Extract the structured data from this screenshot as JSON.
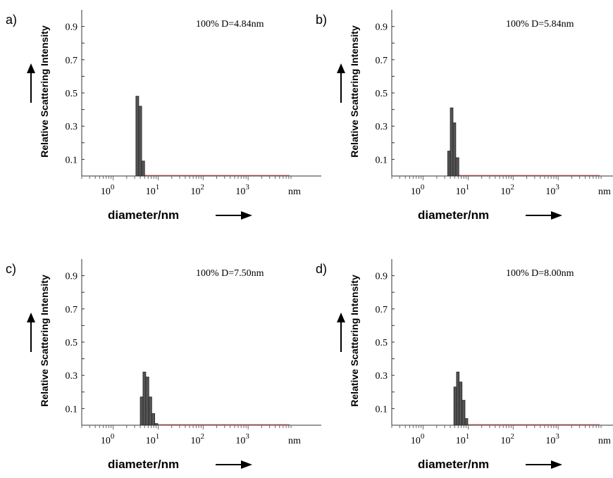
{
  "chart_data": [
    {
      "type": "bar",
      "panel_label": "a)",
      "annotation": "100%  D=4.84nm",
      "ylabel": "Relative Scattering Intensity",
      "xlabel": "diameter/nm",
      "x_unit": "nm",
      "x_scale": "log",
      "xlim": [
        0.2,
        10000
      ],
      "ylim": [
        0,
        1.0
      ],
      "ytick_labels": [
        "0.1",
        "0.3",
        "0.5",
        "0.7",
        "0.9"
      ],
      "xtick_labels": [
        {
          "base": "10",
          "exp": "0"
        },
        {
          "base": "10",
          "exp": "1"
        },
        {
          "base": "10",
          "exp": "2"
        },
        {
          "base": "10",
          "exp": "3"
        }
      ],
      "bins": [
        {
          "x0": 3.2,
          "x1": 3.7,
          "value": 0.48
        },
        {
          "x0": 3.7,
          "x1": 4.3,
          "value": 0.42
        },
        {
          "x0": 4.3,
          "x1": 5.0,
          "value": 0.09
        }
      ],
      "colors": {
        "bar": "#555555",
        "baseline": "#e07070"
      }
    },
    {
      "type": "bar",
      "panel_label": "b)",
      "annotation": "100%  D=5.84nm",
      "ylabel": "Relative Scattering Intensity",
      "xlabel": "diameter/nm",
      "x_unit": "nm",
      "x_scale": "log",
      "xlim": [
        0.2,
        10000
      ],
      "ylim": [
        0,
        1.0
      ],
      "ytick_labels": [
        "0.1",
        "0.3",
        "0.5",
        "0.7",
        "0.9"
      ],
      "xtick_labels": [
        {
          "base": "10",
          "exp": "0"
        },
        {
          "base": "10",
          "exp": "1"
        },
        {
          "base": "10",
          "exp": "2"
        },
        {
          "base": "10",
          "exp": "3"
        }
      ],
      "bins": [
        {
          "x0": 3.5,
          "x1": 4.0,
          "value": 0.15
        },
        {
          "x0": 4.0,
          "x1": 4.6,
          "value": 0.41
        },
        {
          "x0": 4.6,
          "x1": 5.3,
          "value": 0.32
        },
        {
          "x0": 5.3,
          "x1": 6.2,
          "value": 0.11
        }
      ],
      "colors": {
        "bar": "#555555",
        "baseline": "#e07070"
      }
    },
    {
      "type": "bar",
      "panel_label": "c)",
      "annotation": "100%  D=7.50nm",
      "ylabel": "Relative Scattering Intensity",
      "xlabel": "diameter/nm",
      "x_unit": "nm",
      "x_scale": "log",
      "xlim": [
        0.2,
        10000
      ],
      "ylim": [
        0,
        1.0
      ],
      "ytick_labels": [
        "0.1",
        "0.3",
        "0.5",
        "0.7",
        "0.9"
      ],
      "xtick_labels": [
        {
          "base": "10",
          "exp": "0"
        },
        {
          "base": "10",
          "exp": "1"
        },
        {
          "base": "10",
          "exp": "2"
        },
        {
          "base": "10",
          "exp": "3"
        }
      ],
      "bins": [
        {
          "x0": 4.0,
          "x1": 4.6,
          "value": 0.17
        },
        {
          "x0": 4.6,
          "x1": 5.3,
          "value": 0.32
        },
        {
          "x0": 5.3,
          "x1": 6.2,
          "value": 0.29
        },
        {
          "x0": 6.2,
          "x1": 7.2,
          "value": 0.17
        },
        {
          "x0": 7.2,
          "x1": 8.4,
          "value": 0.07
        },
        {
          "x0": 8.4,
          "x1": 9.8,
          "value": 0.01
        }
      ],
      "colors": {
        "bar": "#555555",
        "baseline": "#e07070"
      }
    },
    {
      "type": "bar",
      "panel_label": "d)",
      "annotation": "100%  D=8.00nm",
      "ylabel": "Relative Scattering Intensity",
      "xlabel": "diameter/nm",
      "x_unit": "nm",
      "x_scale": "log",
      "xlim": [
        0.2,
        10000
      ],
      "ylim": [
        0,
        1.0
      ],
      "ytick_labels": [
        "0.1",
        "0.3",
        "0.5",
        "0.7",
        "0.9"
      ],
      "xtick_labels": [
        {
          "base": "10",
          "exp": "0"
        },
        {
          "base": "10",
          "exp": "1"
        },
        {
          "base": "10",
          "exp": "2"
        },
        {
          "base": "10",
          "exp": "3"
        }
      ],
      "bins": [
        {
          "x0": 4.8,
          "x1": 5.5,
          "value": 0.23
        },
        {
          "x0": 5.5,
          "x1": 6.3,
          "value": 0.32
        },
        {
          "x0": 6.3,
          "x1": 7.3,
          "value": 0.26
        },
        {
          "x0": 7.3,
          "x1": 8.5,
          "value": 0.15
        },
        {
          "x0": 8.5,
          "x1": 9.8,
          "value": 0.04
        }
      ],
      "colors": {
        "bar": "#555555",
        "baseline": "#e07070"
      }
    }
  ]
}
